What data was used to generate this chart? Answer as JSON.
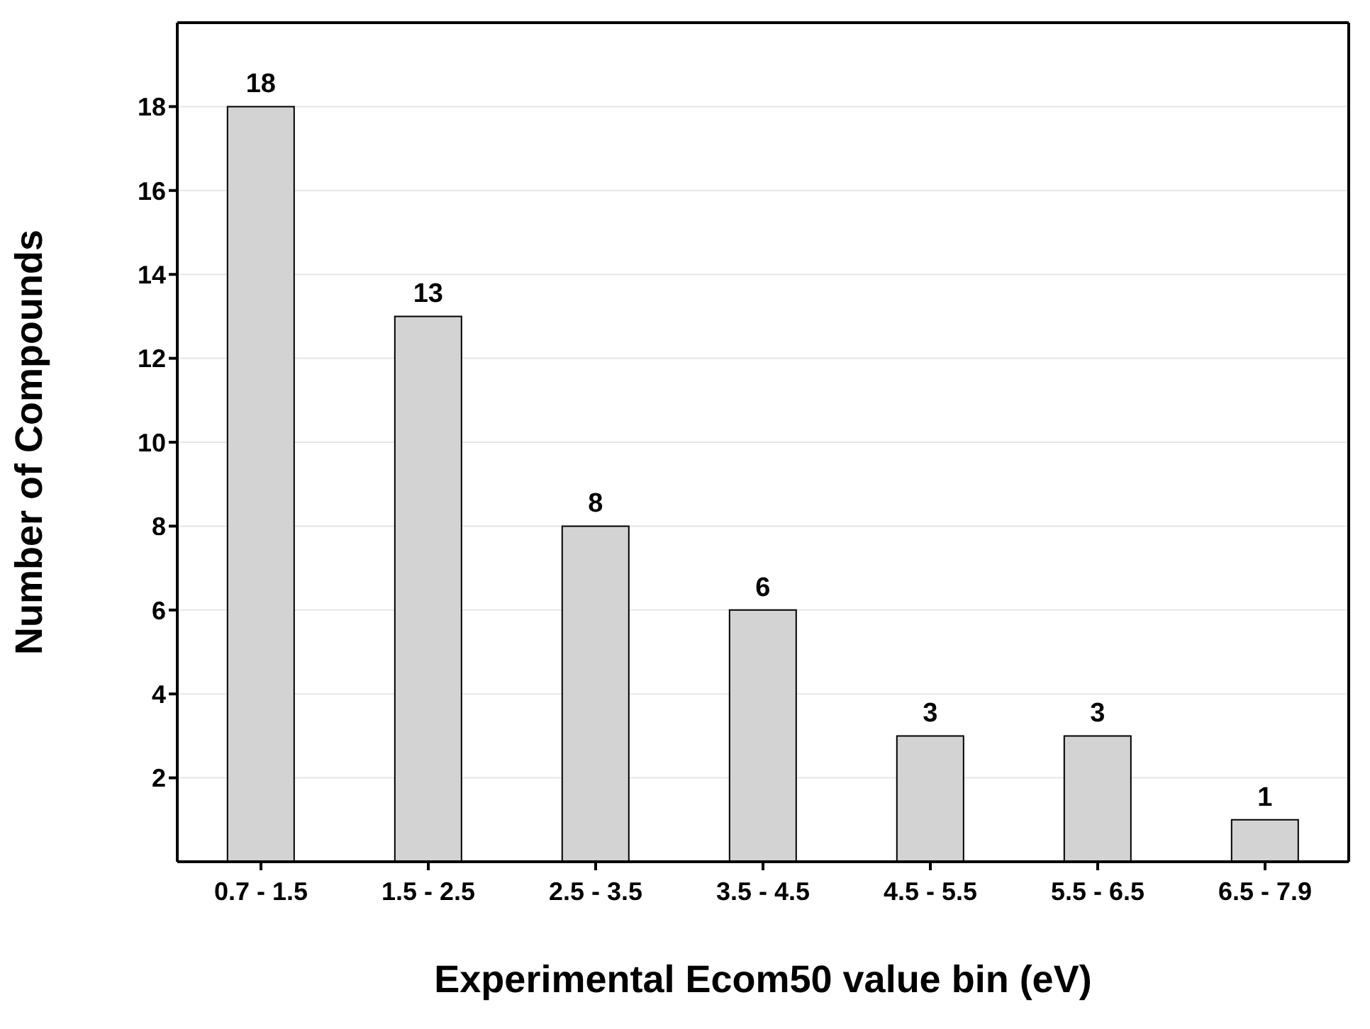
{
  "chart_data": {
    "type": "bar",
    "xlabel": "Experimental Ecom50 value bin (eV)",
    "ylabel": "Number of Compounds",
    "categories": [
      "0.7 - 1.5",
      "1.5 - 2.5",
      "2.5 - 3.5",
      "3.5 - 4.5",
      "4.5 - 5.5",
      "5.5 - 6.5",
      "6.5 - 7.9"
    ],
    "values": [
      18,
      13,
      8,
      6,
      3,
      3,
      1
    ],
    "color": "#d3d3d3",
    "ylim": [
      0,
      20
    ],
    "yticks": [
      2,
      4,
      6,
      8,
      10,
      12,
      14,
      16,
      18
    ],
    "grid": "y",
    "data_labels": true
  }
}
